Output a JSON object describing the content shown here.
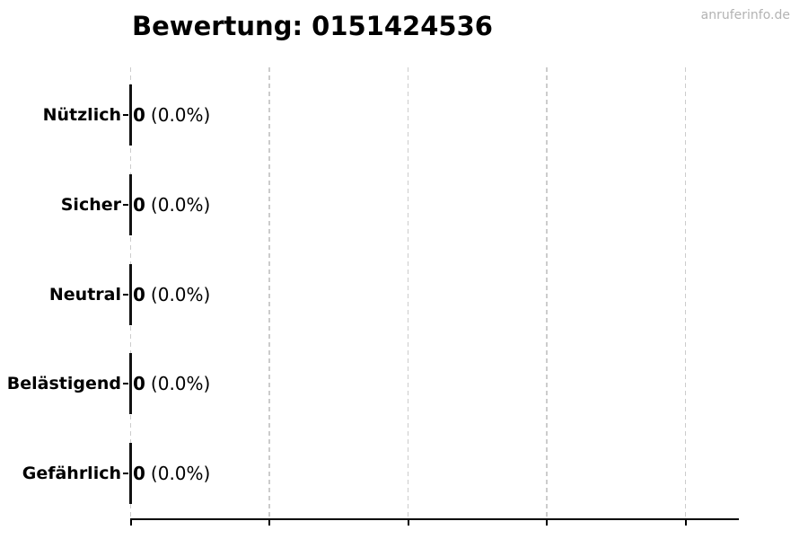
{
  "page": {
    "background": "#ffffff"
  },
  "chart_data": {
    "type": "bar",
    "orientation": "horizontal",
    "title": "Bewertung: 0151424536",
    "watermark": "anruferinfo.de",
    "categories": [
      "Nützlich",
      "Sicher",
      "Neutral",
      "Belästigend",
      "Gefährlich"
    ],
    "values": [
      0,
      0,
      0,
      0,
      0
    ],
    "percentages": [
      "0.0%",
      "0.0%",
      "0.0%",
      "0.0%",
      "0.0%"
    ],
    "rows": [
      {
        "label": "Nützlich",
        "count": "0",
        "percent": "(0.0%)"
      },
      {
        "label": "Sicher",
        "count": "0",
        "percent": "(0.0%)"
      },
      {
        "label": "Neutral",
        "count": "0",
        "percent": "(0.0%)"
      },
      {
        "label": "Belästigend",
        "count": "0",
        "percent": "(0.0%)"
      },
      {
        "label": "Gefährlich",
        "count": "0",
        "percent": "(0.0%)"
      }
    ],
    "x_axis": {
      "gridline_count": 5,
      "tick_labels_visible": false
    },
    "grid": true,
    "legend": false,
    "colors": {
      "bar": "#111111",
      "gridline": "#cccccc",
      "axis": "#000000",
      "text": "#000000",
      "watermark": "#b3b3b3"
    }
  }
}
